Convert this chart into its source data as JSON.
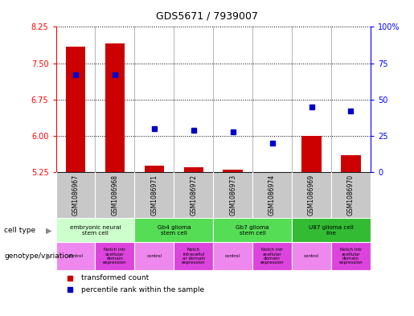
{
  "title": "GDS5671 / 7939007",
  "samples": [
    "GSM1086967",
    "GSM1086968",
    "GSM1086971",
    "GSM1086972",
    "GSM1086973",
    "GSM1086974",
    "GSM1086969",
    "GSM1086970"
  ],
  "transformed_count": [
    7.85,
    7.9,
    5.38,
    5.36,
    5.3,
    5.25,
    6.0,
    5.6
  ],
  "percentile_rank": [
    67,
    67,
    30,
    29,
    28,
    20,
    45,
    42
  ],
  "ylim_left": [
    5.25,
    8.25
  ],
  "ylim_right": [
    0,
    100
  ],
  "yticks_left": [
    5.25,
    6.0,
    6.75,
    7.5,
    8.25
  ],
  "yticks_right": [
    0,
    25,
    50,
    75,
    100
  ],
  "ytick_labels_right": [
    "0",
    "25",
    "50",
    "75",
    "100%"
  ],
  "cell_types": [
    {
      "label": "embryonic neural\nstem cell",
      "start": 0,
      "end": 2,
      "color": "#ccffcc"
    },
    {
      "label": "Gb4 glioma\nstem cell",
      "start": 2,
      "end": 4,
      "color": "#55dd55"
    },
    {
      "label": "Gb7 glioma\nstem cell",
      "start": 4,
      "end": 6,
      "color": "#55dd55"
    },
    {
      "label": "U87 glioma cell\nline",
      "start": 6,
      "end": 8,
      "color": "#33bb33"
    }
  ],
  "genotype_variations": [
    {
      "label": "control",
      "start": 0,
      "end": 1,
      "color": "#ee88ee"
    },
    {
      "label": "Notch intr\nacellular\ndomain\nexpression",
      "start": 1,
      "end": 2,
      "color": "#dd44dd"
    },
    {
      "label": "control",
      "start": 2,
      "end": 3,
      "color": "#ee88ee"
    },
    {
      "label": "Notch\nintracellul\nar domain\nexpression",
      "start": 3,
      "end": 4,
      "color": "#dd44dd"
    },
    {
      "label": "control",
      "start": 4,
      "end": 5,
      "color": "#ee88ee"
    },
    {
      "label": "Notch intr\nacellular\ndomain\nexpression",
      "start": 5,
      "end": 6,
      "color": "#dd44dd"
    },
    {
      "label": "control",
      "start": 6,
      "end": 7,
      "color": "#ee88ee"
    },
    {
      "label": "Notch intr\nacellular\ndomain\nexpression",
      "start": 7,
      "end": 8,
      "color": "#dd44dd"
    }
  ],
  "bar_color": "#cc0000",
  "dot_color": "#0000cc",
  "label_row1": "cell type",
  "label_row2": "genotype/variation",
  "legend_bar": "transformed count",
  "legend_dot": "percentile rank within the sample",
  "gray_color": "#c8c8c8",
  "bar_width": 0.5
}
